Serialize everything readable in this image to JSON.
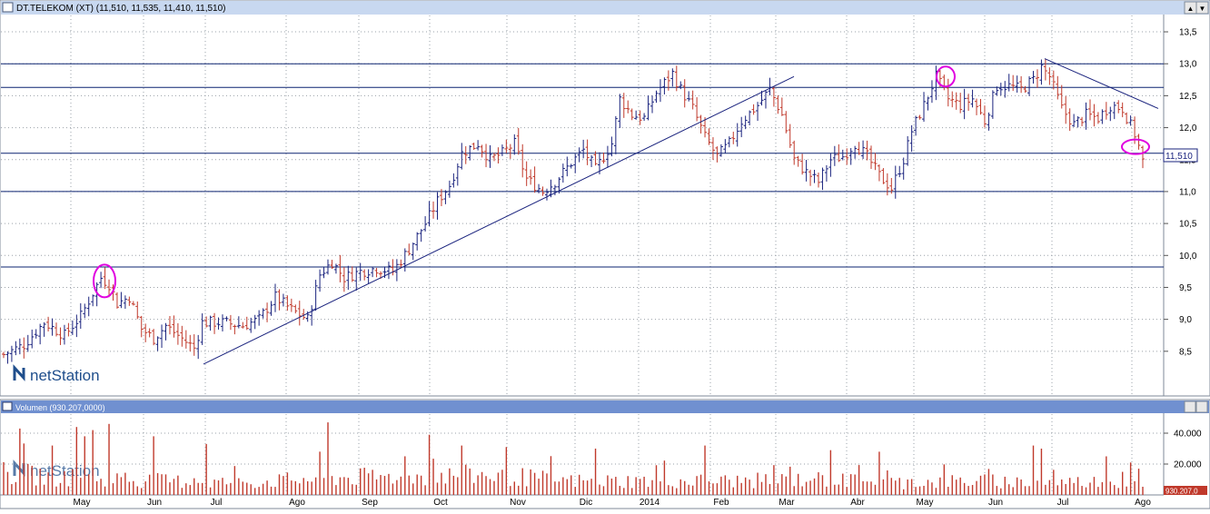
{
  "price_panel": {
    "title": "DT.TELEKOM (XT) (11,510, 11,535, 11,410, 11,510)",
    "last_value_label": "11,510",
    "logo": "netStation"
  },
  "volume_panel": {
    "title": "Volumen (930.207,0000)",
    "last_value_label": "930.207,0",
    "logo": "netStation"
  },
  "window_buttons": {
    "scroll_up": "▲",
    "scroll_down": "▼"
  },
  "colors": {
    "title_bar_bg": "#c8d8f0",
    "volume_title_bar_bg": "#7090d0",
    "up_bar": "#1a237e",
    "down_bar": "#c0392b",
    "level_line": "#0b2370",
    "trend_line": "#1a237e",
    "marker": "#e000e0",
    "grid": "#9aa0a8"
  },
  "chart_data": [
    {
      "type": "ohlc",
      "title": "DT.TELEKOM (XT) (11,510, 11,535, 11,410, 11,510)",
      "x_axis_labels": [
        "May",
        "Jun",
        "Jul",
        "Ago",
        "Sep",
        "Oct",
        "Nov",
        "Dic",
        "2014",
        "Feb",
        "Mar",
        "Abr",
        "May",
        "Jun",
        "Jul",
        "Ago"
      ],
      "y_ticks": [
        "8,5",
        "9,0",
        "9,5",
        "10,0",
        "10,5",
        "11,0",
        "11,5",
        "12,0",
        "12,5",
        "13,0",
        "13,5"
      ],
      "ylim": [
        8.0,
        13.6
      ],
      "grid": true,
      "last_close": 11.51,
      "close_path": [
        [
          0,
          8.45
        ],
        [
          5,
          8.6
        ],
        [
          10,
          8.95
        ],
        [
          15,
          8.75
        ],
        [
          19,
          9.05
        ],
        [
          24,
          9.65
        ],
        [
          26,
          9.55
        ],
        [
          28,
          9.25
        ],
        [
          31,
          9.35
        ],
        [
          34,
          8.85
        ],
        [
          37,
          8.7
        ],
        [
          40,
          8.9
        ],
        [
          43,
          8.75
        ],
        [
          47,
          8.55
        ],
        [
          49,
          8.95
        ],
        [
          54,
          8.95
        ],
        [
          59,
          8.9
        ],
        [
          63,
          9.0
        ],
        [
          67,
          9.35
        ],
        [
          71,
          9.15
        ],
        [
          75,
          9.0
        ],
        [
          78,
          9.7
        ],
        [
          81,
          9.9
        ],
        [
          84,
          9.65
        ],
        [
          88,
          9.75
        ],
        [
          92,
          9.8
        ],
        [
          96,
          9.75
        ],
        [
          100,
          10.1
        ],
        [
          104,
          10.5
        ],
        [
          107,
          10.85
        ],
        [
          110,
          11.1
        ],
        [
          113,
          11.6
        ],
        [
          117,
          11.75
        ],
        [
          120,
          11.5
        ],
        [
          123,
          11.6
        ],
        [
          126,
          11.75
        ],
        [
          129,
          11.2
        ],
        [
          133,
          11.0
        ],
        [
          136,
          11.15
        ],
        [
          140,
          11.45
        ],
        [
          143,
          11.65
        ],
        [
          146,
          11.35
        ],
        [
          150,
          11.75
        ],
        [
          152,
          12.45
        ],
        [
          155,
          12.2
        ],
        [
          158,
          12.15
        ],
        [
          161,
          12.55
        ],
        [
          165,
          12.85
        ],
        [
          167,
          12.6
        ],
        [
          170,
          12.3
        ],
        [
          173,
          11.85
        ],
        [
          176,
          11.55
        ],
        [
          179,
          11.75
        ],
        [
          182,
          12.1
        ],
        [
          186,
          12.35
        ],
        [
          189,
          12.6
        ],
        [
          192,
          12.2
        ],
        [
          195,
          11.5
        ],
        [
          198,
          11.3
        ],
        [
          201,
          11.15
        ],
        [
          204,
          11.5
        ],
        [
          207,
          11.55
        ],
        [
          210,
          11.75
        ],
        [
          213,
          11.55
        ],
        [
          216,
          11.25
        ],
        [
          219,
          11.05
        ],
        [
          222,
          11.5
        ],
        [
          224,
          11.95
        ],
        [
          227,
          12.35
        ],
        [
          230,
          12.8
        ],
        [
          233,
          12.45
        ],
        [
          236,
          12.35
        ],
        [
          239,
          12.45
        ],
        [
          242,
          12.1
        ],
        [
          245,
          12.65
        ],
        [
          248,
          12.65
        ],
        [
          251,
          12.6
        ],
        [
          254,
          12.75
        ],
        [
          256,
          12.95
        ],
        [
          258,
          12.8
        ],
        [
          261,
          12.3
        ],
        [
          264,
          12.05
        ],
        [
          267,
          12.2
        ],
        [
          270,
          12.15
        ],
        [
          273,
          12.35
        ],
        [
          276,
          12.3
        ],
        [
          279,
          11.9
        ],
        [
          281,
          11.51
        ]
      ],
      "horizontal_levels": [
        13.0,
        12.63,
        11.6,
        11.0,
        9.82
      ],
      "trend_lines": [
        {
          "from": [
            "Jul",
            8.3
          ],
          "to": [
            "Mar",
            12.8
          ]
        },
        {
          "from": [
            "Jun",
            13.08
          ],
          "to": [
            "Ago",
            12.3
          ]
        }
      ],
      "markers": [
        {
          "x": "May",
          "y": 9.6
        },
        {
          "x": "May",
          "y": 12.8
        },
        {
          "x": "Ago",
          "y": 11.7
        }
      ]
    },
    {
      "type": "bar",
      "title": "Volumen (930.207,0000)",
      "y_ticks": [
        "20.000",
        "40.000"
      ],
      "ylim": [
        0,
        50000
      ],
      "last_value": 930207.0,
      "profile": [
        [
          0,
          14000
        ],
        [
          20,
          11000
        ],
        [
          40,
          9000
        ],
        [
          60,
          8000
        ],
        [
          80,
          11000
        ],
        [
          100,
          12000
        ],
        [
          120,
          13000
        ],
        [
          140,
          9000
        ],
        [
          160,
          9000
        ],
        [
          180,
          9000
        ],
        [
          200,
          10000
        ],
        [
          220,
          8000
        ],
        [
          240,
          9000
        ],
        [
          260,
          8000
        ],
        [
          281,
          9000
        ]
      ],
      "spikes": [
        [
          4,
          43000
        ],
        [
          12,
          32000
        ],
        [
          18,
          44000
        ],
        [
          20,
          38000
        ],
        [
          22,
          42000
        ],
        [
          26,
          46000
        ],
        [
          37,
          38000
        ],
        [
          50,
          33000
        ],
        [
          80,
          47000
        ],
        [
          105,
          39000
        ],
        [
          113,
          32000
        ],
        [
          124,
          31000
        ],
        [
          146,
          30000
        ],
        [
          173,
          32000
        ],
        [
          204,
          29000
        ],
        [
          216,
          28000
        ],
        [
          254,
          32000
        ],
        [
          256,
          30000
        ],
        [
          272,
          25000
        ],
        [
          278,
          21000
        ],
        [
          280,
          17000
        ]
      ]
    }
  ]
}
